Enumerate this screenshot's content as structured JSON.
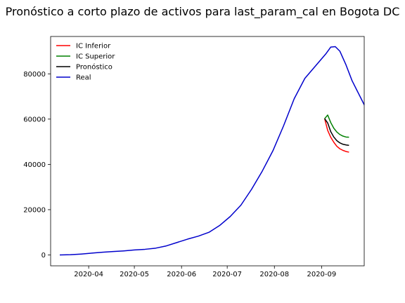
{
  "chart_data": {
    "type": "line",
    "title": "Pronóstico a corto plazo de activos para last_param_cal en Bogota DC",
    "xlabel": "",
    "ylabel": "",
    "x_axis_type": "date",
    "xlim": [
      "2020-03-07",
      "2020-09-29"
    ],
    "ylim": [
      -4800,
      96500
    ],
    "x_ticks": [
      "2020-04-01",
      "2020-05-01",
      "2020-06-01",
      "2020-07-01",
      "2020-08-01",
      "2020-09-01"
    ],
    "x_tick_labels": [
      "2020-04",
      "2020-05",
      "2020-06",
      "2020-07",
      "2020-08",
      "2020-09"
    ],
    "y_ticks": [
      0,
      20000,
      40000,
      60000,
      80000
    ],
    "y_tick_labels": [
      "0",
      "20000",
      "40000",
      "60000",
      "80000"
    ],
    "grid": false,
    "legend_position": "top-left",
    "series": [
      {
        "name": "IC Inferior",
        "color": "#ff0000",
        "points": [
          [
            "2020-09-03",
            60200
          ],
          [
            "2020-09-05",
            55000
          ],
          [
            "2020-09-07",
            52000
          ],
          [
            "2020-09-09",
            49800
          ],
          [
            "2020-09-11",
            48000
          ],
          [
            "2020-09-13",
            46900
          ],
          [
            "2020-09-15",
            46200
          ],
          [
            "2020-09-17",
            45700
          ],
          [
            "2020-09-19",
            45400
          ]
        ]
      },
      {
        "name": "IC Superior",
        "color": "#008000",
        "points": [
          [
            "2020-09-03",
            60200
          ],
          [
            "2020-09-05",
            61800
          ],
          [
            "2020-09-07",
            58500
          ],
          [
            "2020-09-09",
            56000
          ],
          [
            "2020-09-11",
            54300
          ],
          [
            "2020-09-13",
            53200
          ],
          [
            "2020-09-15",
            52500
          ],
          [
            "2020-09-17",
            52100
          ],
          [
            "2020-09-19",
            52000
          ]
        ]
      },
      {
        "name": "Pronóstico",
        "color": "#000000",
        "points": [
          [
            "2020-09-03",
            60200
          ],
          [
            "2020-09-05",
            58300
          ],
          [
            "2020-09-07",
            54500
          ],
          [
            "2020-09-09",
            52100
          ],
          [
            "2020-09-11",
            50500
          ],
          [
            "2020-09-13",
            49500
          ],
          [
            "2020-09-15",
            48900
          ],
          [
            "2020-09-17",
            48600
          ],
          [
            "2020-09-19",
            48400
          ]
        ]
      },
      {
        "name": "Real",
        "color": "#0000cc",
        "points": [
          [
            "2020-03-13",
            0
          ],
          [
            "2020-03-20",
            100
          ],
          [
            "2020-03-27",
            400
          ],
          [
            "2020-04-03",
            800
          ],
          [
            "2020-04-10",
            1200
          ],
          [
            "2020-04-17",
            1500
          ],
          [
            "2020-04-24",
            1800
          ],
          [
            "2020-05-01",
            2200
          ],
          [
            "2020-05-08",
            2500
          ],
          [
            "2020-05-15",
            3000
          ],
          [
            "2020-05-22",
            4000
          ],
          [
            "2020-05-29",
            5500
          ],
          [
            "2020-06-05",
            7000
          ],
          [
            "2020-06-12",
            8300
          ],
          [
            "2020-06-19",
            10000
          ],
          [
            "2020-06-26",
            13000
          ],
          [
            "2020-07-03",
            17000
          ],
          [
            "2020-07-10",
            22000
          ],
          [
            "2020-07-17",
            29000
          ],
          [
            "2020-07-24",
            37000
          ],
          [
            "2020-07-31",
            46000
          ],
          [
            "2020-08-07",
            57000
          ],
          [
            "2020-08-14",
            69000
          ],
          [
            "2020-08-21",
            78000
          ],
          [
            "2020-08-28",
            83500
          ],
          [
            "2020-09-04",
            89000
          ],
          [
            "2020-09-07",
            91800
          ],
          [
            "2020-09-10",
            92000
          ],
          [
            "2020-09-13",
            90000
          ],
          [
            "2020-09-17",
            84000
          ],
          [
            "2020-09-21",
            77000
          ],
          [
            "2020-09-24",
            73000
          ],
          [
            "2020-09-27",
            69000
          ],
          [
            "2020-09-30",
            65000
          ],
          [
            "2020-10-03",
            60200
          ]
        ]
      }
    ]
  }
}
